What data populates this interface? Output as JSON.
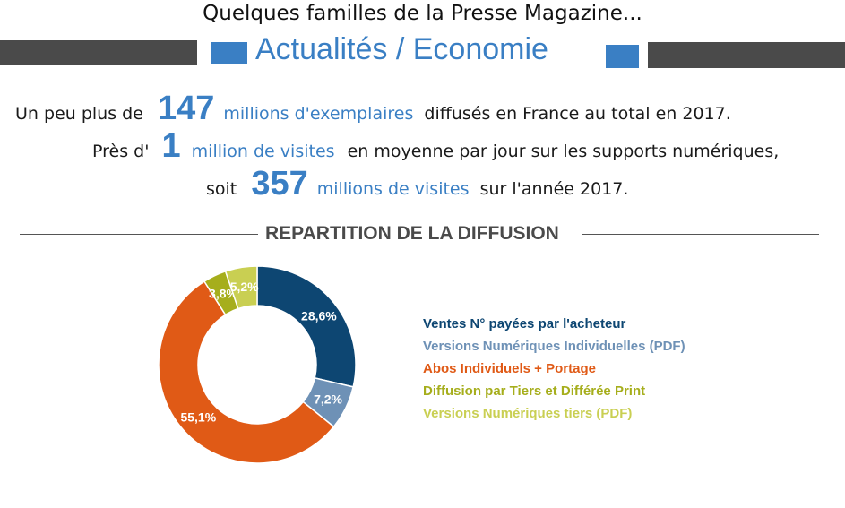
{
  "header": {
    "title": "Quelques familles de la Presse Magazine...",
    "section": "Actualités / Economie"
  },
  "stats": {
    "line1": {
      "pre": "Un peu plus de",
      "number": "147",
      "accent": "millions d'exemplaires",
      "post": "diffusés en France au total en 2017."
    },
    "line2": {
      "pre": "Près d'",
      "number": "1",
      "accent": "million de visites",
      "post": "en moyenne par jour sur les supports numériques,"
    },
    "line3": {
      "pre": "soit",
      "number": "357",
      "accent": "millions de visites",
      "post": "sur l'année 2017."
    }
  },
  "colors": {
    "accent": "#3a7fc4",
    "dark_bar": "#4a4a4a"
  },
  "chart_data": {
    "type": "pie",
    "title": "REPARTITION DE LA DIFFUSION",
    "donut": true,
    "legend_position": "right",
    "series": [
      {
        "name": "Ventes N° payées par l'acheteur",
        "value": 28.6,
        "label": "28,6%",
        "color": "#0d4672"
      },
      {
        "name": "Versions Numériques Individuelles (PDF)",
        "value": 7.2,
        "label": "7,2%",
        "color": "#6e91b6"
      },
      {
        "name": "Abos Individuels + Portage",
        "value": 55.1,
        "label": "55,1%",
        "color": "#e05a16"
      },
      {
        "name": "Diffusion par Tiers et Différée Print",
        "value": 3.8,
        "label": "3,8%",
        "color": "#a6ae1c"
      },
      {
        "name": "Versions Numériques tiers (PDF)",
        "value": 5.2,
        "label": "5,2%",
        "color": "#c9cf52"
      }
    ]
  }
}
